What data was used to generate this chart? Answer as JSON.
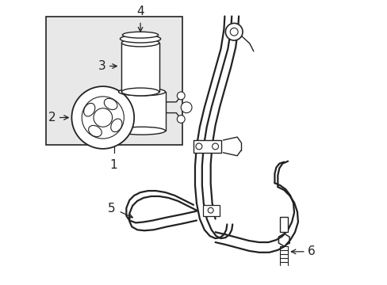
{
  "background_color": "#ffffff",
  "box_bg": "#e8e8e8",
  "line_color": "#222222",
  "label_fontsize": 9,
  "label_fontsize_num": 11
}
